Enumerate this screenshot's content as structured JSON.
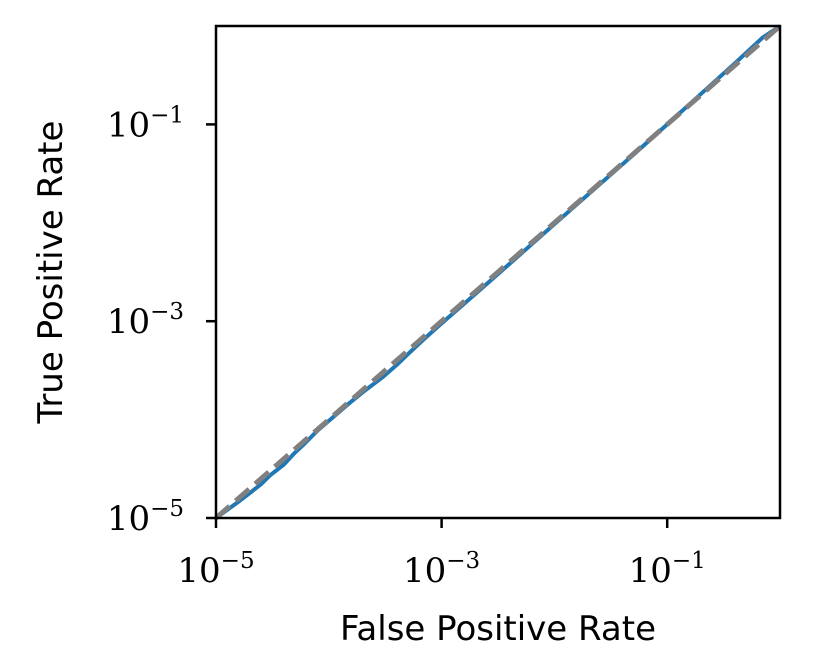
{
  "chart_data": {
    "type": "line",
    "xlabel": "False Positive Rate",
    "ylabel": "True Positive Rate",
    "xscale": "log",
    "yscale": "log",
    "xlim": [
      1e-05,
      1
    ],
    "ylim": [
      1e-05,
      1
    ],
    "x_ticks": [
      {
        "value": 1e-05,
        "base": "10",
        "exp": "−5"
      },
      {
        "value": 0.001,
        "base": "10",
        "exp": "−3"
      },
      {
        "value": 0.1,
        "base": "10",
        "exp": "−1"
      }
    ],
    "y_ticks": [
      {
        "value": 1e-05,
        "base": "10",
        "exp": "−5"
      },
      {
        "value": 0.001,
        "base": "10",
        "exp": "−3"
      },
      {
        "value": 0.1,
        "base": "10",
        "exp": "−1"
      }
    ],
    "grid": false,
    "series": [
      {
        "color": "#1f77b4",
        "style": "solid",
        "x": [
          1e-05,
          1.5e-05,
          2e-05,
          2.5e-05,
          3e-05,
          4e-05,
          5e-05,
          6e-05,
          8e-05,
          0.0001,
          0.00015,
          0.0002,
          0.0003,
          0.0004,
          0.0005,
          0.0007,
          0.001,
          0.002,
          0.005,
          0.01,
          0.02,
          0.05,
          0.1,
          0.2,
          0.4,
          0.7,
          1.0
        ],
        "y": [
          1e-05,
          1.4e-05,
          1.8e-05,
          2.2e-05,
          2.7e-05,
          3.5e-05,
          4.6e-05,
          5.6e-05,
          7.8e-05,
          9.7e-05,
          0.000145,
          0.00019,
          0.00027,
          0.00036,
          0.00046,
          0.00066,
          0.00095,
          0.0019,
          0.0048,
          0.0097,
          0.0195,
          0.049,
          0.1,
          0.205,
          0.42,
          0.76,
          1.0
        ]
      },
      {
        "color": "#808080",
        "style": "dashed",
        "x": [
          1e-05,
          1
        ],
        "y": [
          1e-05,
          1
        ]
      }
    ]
  }
}
